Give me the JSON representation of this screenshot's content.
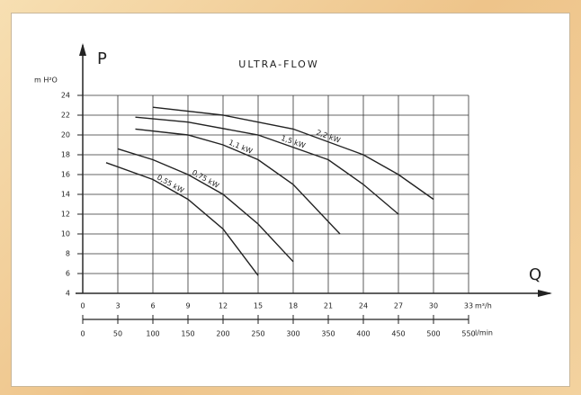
{
  "chart_data": {
    "type": "line",
    "title": "ULTRA-FLOW",
    "y_axis_label": "P",
    "y_unit": "m H²O",
    "x_axis_label": "Q",
    "x_unit": "m³/h",
    "x2_unit": "l/min",
    "xlim": [
      0,
      33
    ],
    "xticks": [
      0,
      3,
      6,
      9,
      12,
      15,
      18,
      21,
      24,
      27,
      30,
      33
    ],
    "x2lim": [
      0,
      550
    ],
    "x2ticks": [
      0,
      50,
      100,
      150,
      200,
      250,
      300,
      350,
      400,
      450,
      500,
      550
    ],
    "ylim": [
      4,
      24
    ],
    "yticks": [
      4,
      6,
      8,
      10,
      12,
      14,
      16,
      18,
      20,
      22,
      24
    ],
    "grid": true,
    "series": [
      {
        "name": "2,2 kW",
        "color": "#222",
        "x": [
          6,
          12,
          18,
          24,
          27,
          30
        ],
        "values": [
          22.8,
          22,
          20.6,
          18,
          16,
          13.5
        ]
      },
      {
        "name": "1,5 kW",
        "color": "#222",
        "x": [
          4.5,
          9,
          15,
          21,
          24,
          27
        ],
        "values": [
          21.8,
          21.3,
          20,
          17.5,
          15,
          12
        ]
      },
      {
        "name": "1,1 kW",
        "color": "#222",
        "x": [
          4.5,
          9,
          12,
          15,
          18,
          22
        ],
        "values": [
          20.6,
          20,
          19,
          17.5,
          15,
          10
        ]
      },
      {
        "name": "0,75 kW",
        "color": "#222",
        "x": [
          3,
          6,
          9,
          12,
          15,
          18
        ],
        "values": [
          18.6,
          17.5,
          16,
          14,
          11,
          7.2
        ]
      },
      {
        "name": "0,55 kW",
        "color": "#222",
        "x": [
          2,
          6,
          9,
          12,
          15
        ],
        "values": [
          17.2,
          15.5,
          13.5,
          10.5,
          5.8
        ]
      }
    ]
  }
}
